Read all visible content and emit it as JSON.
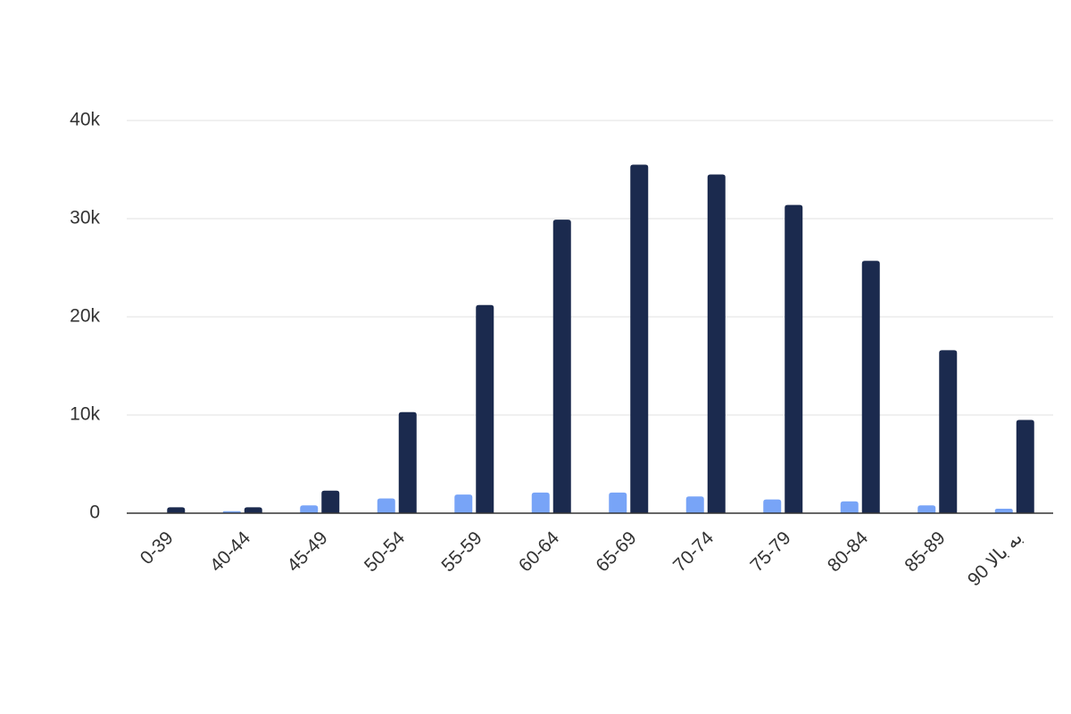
{
  "chart_data": {
    "type": "bar",
    "categories": [
      "0-39",
      "40-44",
      "45-49",
      "50-54",
      "55-59",
      "60-64",
      "65-69",
      "70-74",
      "75-79",
      "80-84",
      "85-89",
      "90 به بالا"
    ],
    "series": [
      {
        "color": "#78a4f7",
        "values": [
          50,
          200,
          800,
          1500,
          1900,
          2100,
          2100,
          1700,
          1400,
          1200,
          800,
          450
        ]
      },
      {
        "color": "#1b2a4e",
        "values": [
          600,
          600,
          2300,
          10300,
          21200,
          29900,
          35500,
          34500,
          31400,
          25700,
          16600,
          9500
        ]
      }
    ],
    "ylim": [
      0,
      40000
    ],
    "yticks": [
      0,
      {
        "value": 10000,
        "label": "10k"
      },
      {
        "value": 20000,
        "label": "20k"
      },
      {
        "value": 30000,
        "label": "30k"
      },
      {
        "value": 40000,
        "label": "40k"
      }
    ],
    "grid": true
  }
}
